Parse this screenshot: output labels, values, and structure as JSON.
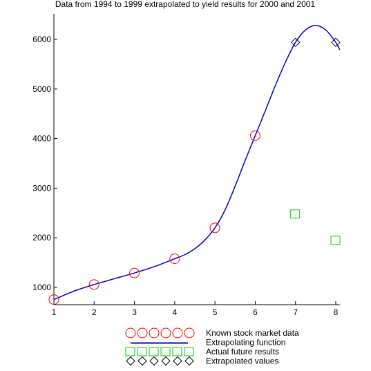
{
  "chart_data": {
    "type": "scatter",
    "title": "Data from 1994 to 1999 extrapolated to yield results for 2000 and 2001",
    "xlabel": "",
    "ylabel": "",
    "xlim": [
      1,
      8.1
    ],
    "ylim": [
      620,
      6400
    ],
    "xticks": [
      1,
      2,
      3,
      4,
      5,
      6,
      7,
      8
    ],
    "yticks": [
      1000,
      2000,
      3000,
      4000,
      5000,
      6000
    ],
    "grid": false,
    "legend_position": "bottom",
    "series": [
      {
        "name": "Known stock market data",
        "marker": "circle",
        "color": "#ff0000",
        "points": [
          [
            1,
            755
          ],
          [
            2,
            1058
          ],
          [
            3,
            1290
          ],
          [
            4,
            1578
          ],
          [
            5,
            2200
          ],
          [
            6,
            4060
          ]
        ]
      },
      {
        "name": "Extrapolating function",
        "marker": "line",
        "color": "#0000cc",
        "points": [
          [
            1,
            755
          ],
          [
            1.25,
            842
          ],
          [
            1.5,
            925
          ],
          [
            1.75,
            995
          ],
          [
            2,
            1058
          ],
          [
            2.5,
            1175
          ],
          [
            3,
            1290
          ],
          [
            3.5,
            1420
          ],
          [
            4,
            1578
          ],
          [
            4.25,
            1660
          ],
          [
            4.5,
            1780
          ],
          [
            4.75,
            1955
          ],
          [
            5,
            2200
          ],
          [
            5.25,
            2560
          ],
          [
            5.5,
            3040
          ],
          [
            5.75,
            3560
          ],
          [
            6,
            4060
          ],
          [
            6.25,
            4560
          ],
          [
            6.5,
            5070
          ],
          [
            6.75,
            5540
          ],
          [
            7,
            5940
          ],
          [
            7.25,
            6190
          ],
          [
            7.5,
            6280
          ],
          [
            7.75,
            6190
          ],
          [
            8,
            5940
          ],
          [
            8.1,
            5790
          ]
        ]
      },
      {
        "name": "Actual future results",
        "marker": "square",
        "color": "#00cc00",
        "points": [
          [
            7,
            2480
          ],
          [
            8,
            1950
          ]
        ]
      },
      {
        "name": "Extrapolated values",
        "marker": "diamond",
        "color": "#000000",
        "points": [
          [
            7,
            5940
          ],
          [
            8,
            5940
          ]
        ]
      }
    ]
  }
}
